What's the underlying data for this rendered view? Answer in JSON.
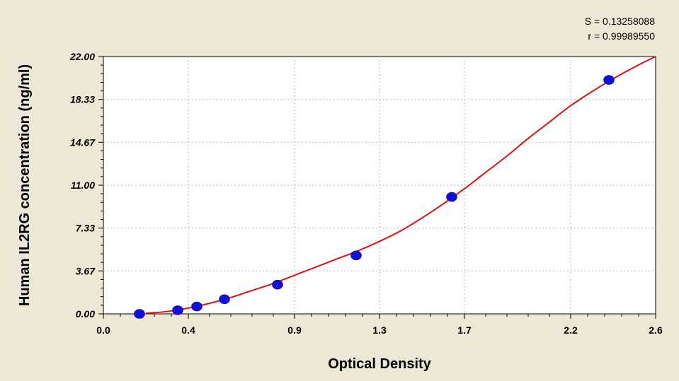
{
  "stats": {
    "s_line": "S = 0.13258088",
    "r_line": "r = 0.99989550"
  },
  "chart_data": {
    "type": "scatter",
    "xlabel": "Optical Density",
    "ylabel": "Human IL2RG concentration (ng/ml)",
    "xlim": [
      0,
      2.6
    ],
    "ylim": [
      0,
      22
    ],
    "x_ticks": [
      0.0,
      0.4,
      0.9,
      1.3,
      1.7,
      2.2,
      2.6
    ],
    "x_tick_labels": [
      "0.0",
      "0.4",
      "0.9",
      "1.3",
      "1.7",
      "2.2",
      "2.6"
    ],
    "y_ticks": [
      0,
      3.67,
      7.33,
      11,
      14.67,
      18.33,
      22
    ],
    "y_tick_labels": [
      "0.00",
      "3.67",
      "7.33",
      "11.00",
      "14.67",
      "18.33",
      "22.00"
    ],
    "grid": true,
    "colors": {
      "points": "#1010d8",
      "curve": "#e01010",
      "grid": "#b8b8b8",
      "plot_bg": "#ffffff"
    },
    "series": [
      {
        "kind": "points",
        "x": [
          0.17,
          0.35,
          0.44,
          0.57,
          0.82,
          1.19,
          1.64,
          2.38
        ],
        "y": [
          0.0,
          0.31,
          0.63,
          1.25,
          2.5,
          5.0,
          10.0,
          20.0
        ]
      },
      {
        "kind": "fit-curve",
        "x": [
          0.2,
          0.3,
          0.4,
          0.5,
          0.6,
          0.7,
          0.8,
          0.9,
          1.0,
          1.1,
          1.2,
          1.3,
          1.4,
          1.5,
          1.6,
          1.7,
          1.8,
          1.9,
          2.0,
          2.1,
          2.2,
          2.3,
          2.4,
          2.5,
          2.6
        ],
        "y": [
          0.05,
          0.2,
          0.5,
          0.9,
          1.4,
          2.0,
          2.6,
          3.3,
          4.0,
          4.7,
          5.4,
          6.2,
          7.1,
          8.2,
          9.4,
          10.7,
          12.1,
          13.5,
          15.0,
          16.4,
          17.8,
          19.0,
          20.1,
          21.1,
          22.0
        ]
      }
    ]
  }
}
